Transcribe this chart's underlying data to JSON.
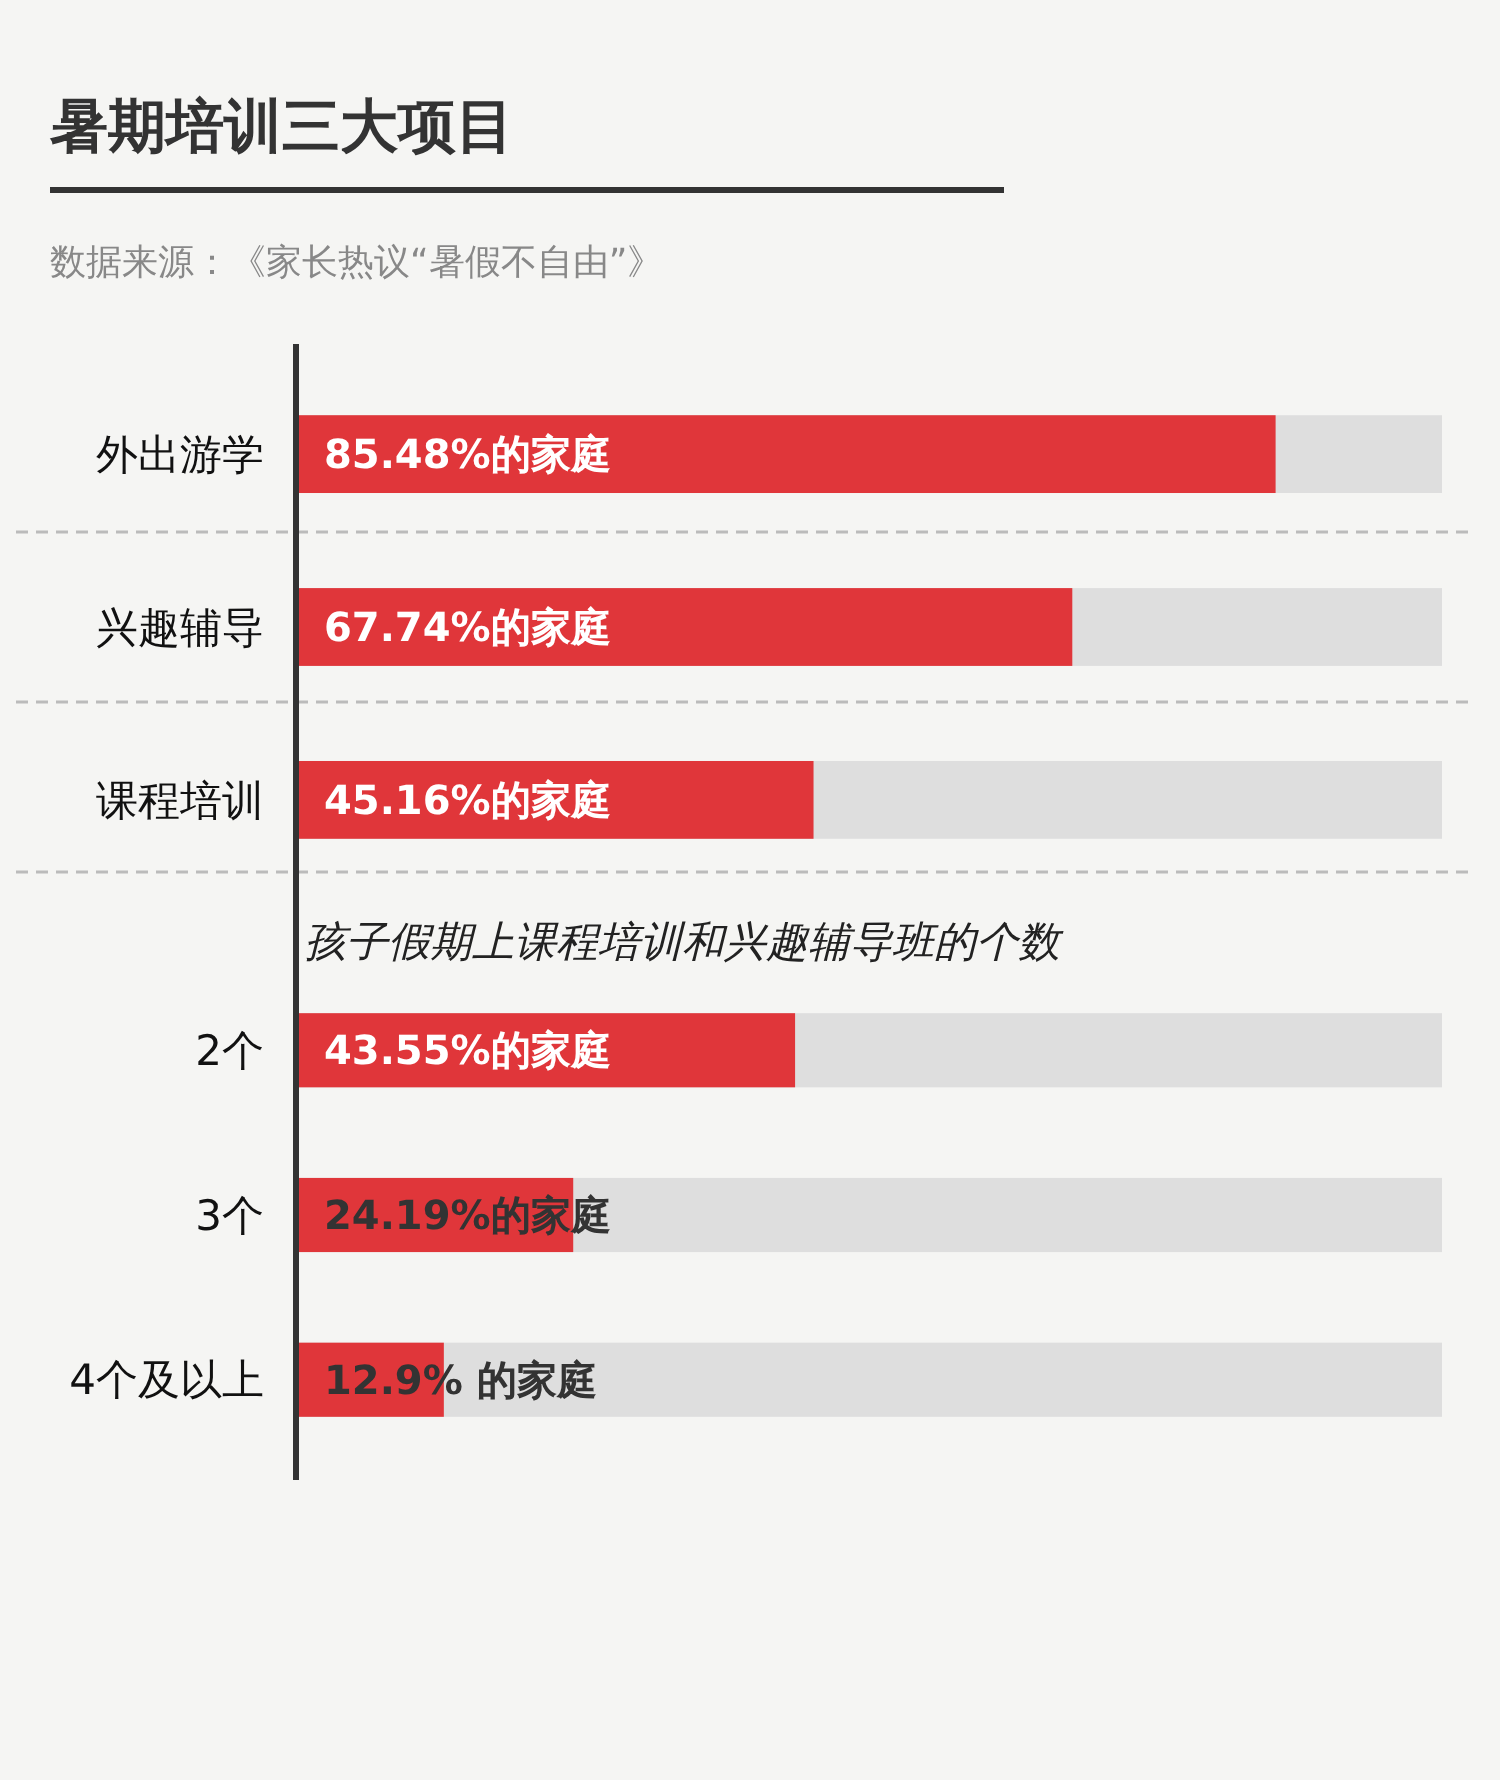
{
  "chart_data": [
    {
      "type": "bar",
      "orientation": "horizontal",
      "title": "暑期培训三大项目",
      "annotations": [
        "数据来源：《家长热议“暑假不自由”》"
      ],
      "categories": [
        "外出游学",
        "兴趣辅导",
        "课程培训"
      ],
      "values": [
        85.48,
        67.74,
        45.16
      ],
      "value_labels": [
        "85.48%的家庭",
        "67.74%的家庭",
        "45.16%的家庭"
      ],
      "color": "#e0363a",
      "xlim": [
        0,
        100
      ],
      "tick_labels": false,
      "grid": true
    },
    {
      "type": "bar",
      "orientation": "horizontal",
      "title": "孩子假期上课程培训和兴趣辅导班的个数",
      "categories": [
        "2个",
        "3个",
        "4个及以上"
      ],
      "values": [
        43.55,
        24.19,
        12.9
      ],
      "value_labels": [
        "43.55%的家庭",
        "24.19%的家庭",
        "12.9% 的家庭"
      ],
      "color": "#e0363a",
      "xlim": [
        0,
        100
      ],
      "tick_labels": false,
      "grid": false
    }
  ]
}
